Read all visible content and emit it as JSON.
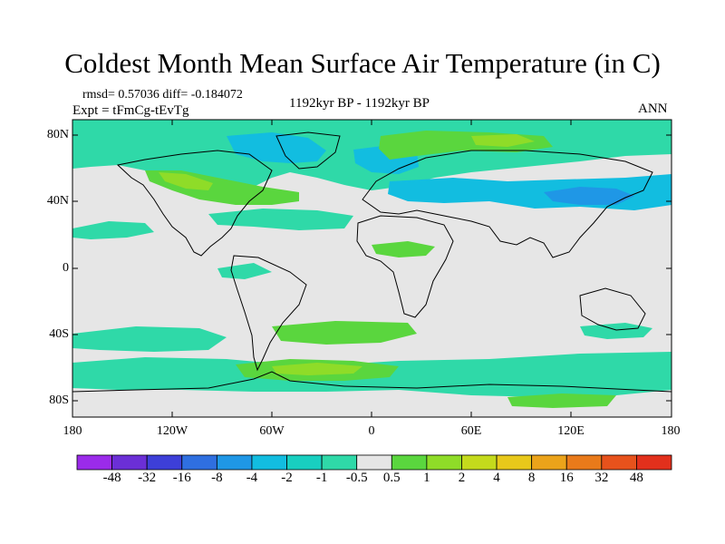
{
  "title": "Coldest Month Mean Surface Air Temperature (in C)",
  "stats_line": "rmsd= 0.57036 diff= -0.184072",
  "experiment_line": "Expt = tFmCg-tEvTg",
  "period_line": "1192kyr BP - 1192kyr BP",
  "season_line": "ANN",
  "lat_labels": [
    "80N",
    "40N",
    "0",
    "40S",
    "80S"
  ],
  "lon_labels": [
    "180",
    "120W",
    "60W",
    "0",
    "60E",
    "120E",
    "180"
  ],
  "colorbar": {
    "labels": [
      "-48",
      "-32",
      "-16",
      "-8",
      "-4",
      "-2",
      "-1",
      "-0.5",
      "0.5",
      "1",
      "2",
      "4",
      "8",
      "16",
      "32",
      "48"
    ],
    "colors": [
      "#9b2bea",
      "#6b2fd6",
      "#3d3fd8",
      "#2f6fe0",
      "#1f97e6",
      "#12bde0",
      "#18cfc0",
      "#2fd9a8",
      "#e6e6e6",
      "#5ad63e",
      "#8fdc28",
      "#c4da1c",
      "#e8c81a",
      "#eba31a",
      "#e97a1a",
      "#e7521c",
      "#e2301c"
    ]
  },
  "map_colors": {
    "ocean_land_base": "#e6e6e6",
    "cool_small": "#2fd9a8",
    "cool_mid": "#12bde0",
    "cool_strong": "#1f97e6",
    "warm_small": "#5ad63e",
    "warm_mid": "#8fdc28",
    "warm_strong": "#c4da1c",
    "coast": "#000000"
  }
}
